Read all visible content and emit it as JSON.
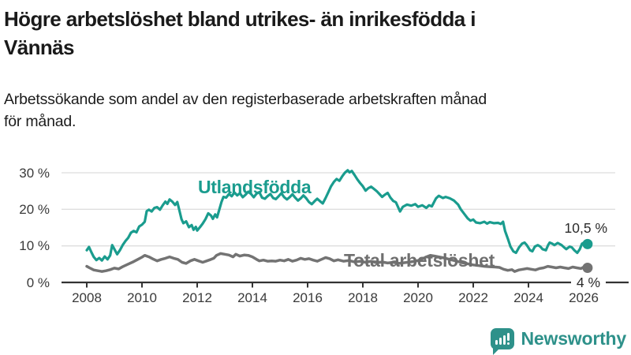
{
  "title": {
    "line1": "Högre arbetslöshet bland utrikes- än inrikesfödda i",
    "line2": "Vännäs"
  },
  "subtitle": {
    "line1": "Arbetssökande som andel av den registerbaserade arbetskraften månad",
    "line2": "för månad."
  },
  "branding": {
    "logo_text": "Newsworthy",
    "logo_icon": "newsworthy-bar-chart-speech-bubble-icon"
  },
  "colors": {
    "accent_teal": "#1a9c8e",
    "logo_teal": "#2e918a",
    "line_gray": "#737373",
    "label_gray": "#6f6f6f",
    "grid": "#dedede",
    "axis": "#333333",
    "text": "#1a1a1a"
  },
  "chart_data": {
    "type": "line",
    "title": "Högre arbetslöshet bland utrikes- än inrikesfödda i Vännäs",
    "xlabel": "",
    "ylabel": "",
    "x_axis": {
      "ticks": [
        2008,
        2010,
        2012,
        2014,
        2016,
        2018,
        2020,
        2022,
        2024,
        2026
      ],
      "min": 2008,
      "max": 2026.2
    },
    "y_axis": {
      "tick_values": [
        0,
        10,
        20,
        30
      ],
      "tick_labels": [
        "0 %",
        "10 %",
        "20 %",
        "30 %"
      ],
      "ylim": [
        0,
        32
      ],
      "grid": true
    },
    "series": [
      {
        "name": "Utlandsfödda",
        "color": "#1a9c8e",
        "end_label": "10,5 %",
        "end_value": 10.5,
        "points": [
          [
            2008.0,
            8.8
          ],
          [
            2008.08,
            9.7
          ],
          [
            2008.17,
            8.2
          ],
          [
            2008.25,
            7.0
          ],
          [
            2008.35,
            6.1
          ],
          [
            2008.45,
            6.7
          ],
          [
            2008.55,
            6.0
          ],
          [
            2008.65,
            7.1
          ],
          [
            2008.75,
            6.3
          ],
          [
            2008.85,
            7.4
          ],
          [
            2008.92,
            10.2
          ],
          [
            2009.0,
            9.1
          ],
          [
            2009.1,
            7.7
          ],
          [
            2009.2,
            8.8
          ],
          [
            2009.3,
            10.2
          ],
          [
            2009.4,
            11.3
          ],
          [
            2009.5,
            12.2
          ],
          [
            2009.6,
            13.6
          ],
          [
            2009.7,
            14.1
          ],
          [
            2009.8,
            13.7
          ],
          [
            2009.9,
            15.3
          ],
          [
            2010.0,
            15.8
          ],
          [
            2010.1,
            16.6
          ],
          [
            2010.17,
            19.5
          ],
          [
            2010.25,
            19.9
          ],
          [
            2010.35,
            19.4
          ],
          [
            2010.45,
            20.4
          ],
          [
            2010.55,
            20.6
          ],
          [
            2010.65,
            19.9
          ],
          [
            2010.75,
            21.1
          ],
          [
            2010.85,
            22.1
          ],
          [
            2010.92,
            21.5
          ],
          [
            2011.0,
            22.7
          ],
          [
            2011.1,
            22.1
          ],
          [
            2011.2,
            21.2
          ],
          [
            2011.28,
            22.0
          ],
          [
            2011.35,
            19.9
          ],
          [
            2011.43,
            17.3
          ],
          [
            2011.5,
            16.2
          ],
          [
            2011.6,
            16.7
          ],
          [
            2011.7,
            15.1
          ],
          [
            2011.8,
            15.7
          ],
          [
            2011.87,
            14.4
          ],
          [
            2011.95,
            15.2
          ],
          [
            2012.0,
            14.2
          ],
          [
            2012.1,
            15.1
          ],
          [
            2012.2,
            16.1
          ],
          [
            2012.3,
            17.3
          ],
          [
            2012.4,
            18.9
          ],
          [
            2012.5,
            18.3
          ],
          [
            2012.57,
            17.4
          ],
          [
            2012.65,
            18.6
          ],
          [
            2012.72,
            17.8
          ],
          [
            2012.8,
            19.9
          ],
          [
            2012.88,
            22.0
          ],
          [
            2012.95,
            23.4
          ],
          [
            2013.05,
            23.2
          ],
          [
            2013.15,
            24.2
          ],
          [
            2013.25,
            23.6
          ],
          [
            2013.35,
            24.6
          ],
          [
            2013.45,
            23.8
          ],
          [
            2013.55,
            24.4
          ],
          [
            2013.65,
            23.3
          ],
          [
            2013.75,
            24.0
          ],
          [
            2013.85,
            24.8
          ],
          [
            2013.95,
            24.2
          ],
          [
            2014.05,
            23.3
          ],
          [
            2014.15,
            24.3
          ],
          [
            2014.25,
            24.7
          ],
          [
            2014.35,
            23.2
          ],
          [
            2014.45,
            22.9
          ],
          [
            2014.55,
            23.6
          ],
          [
            2014.65,
            24.2
          ],
          [
            2014.75,
            23.1
          ],
          [
            2014.85,
            22.8
          ],
          [
            2014.95,
            23.6
          ],
          [
            2015.05,
            24.4
          ],
          [
            2015.15,
            23.3
          ],
          [
            2015.25,
            22.7
          ],
          [
            2015.35,
            23.3
          ],
          [
            2015.45,
            24.1
          ],
          [
            2015.55,
            23.2
          ],
          [
            2015.65,
            22.4
          ],
          [
            2015.75,
            23.0
          ],
          [
            2015.85,
            23.8
          ],
          [
            2015.95,
            23.0
          ],
          [
            2016.05,
            22.0
          ],
          [
            2016.15,
            21.4
          ],
          [
            2016.25,
            22.2
          ],
          [
            2016.35,
            22.9
          ],
          [
            2016.45,
            22.2
          ],
          [
            2016.55,
            21.6
          ],
          [
            2016.65,
            23.1
          ],
          [
            2016.75,
            24.7
          ],
          [
            2016.85,
            26.3
          ],
          [
            2016.95,
            27.5
          ],
          [
            2017.05,
            28.3
          ],
          [
            2017.15,
            27.8
          ],
          [
            2017.25,
            29.0
          ],
          [
            2017.35,
            30.0
          ],
          [
            2017.45,
            30.7
          ],
          [
            2017.52,
            30.1
          ],
          [
            2017.6,
            30.5
          ],
          [
            2017.7,
            29.4
          ],
          [
            2017.8,
            28.2
          ],
          [
            2017.9,
            27.2
          ],
          [
            2018.0,
            26.3
          ],
          [
            2018.1,
            25.1
          ],
          [
            2018.2,
            25.8
          ],
          [
            2018.3,
            26.2
          ],
          [
            2018.4,
            25.6
          ],
          [
            2018.5,
            25.0
          ],
          [
            2018.6,
            24.2
          ],
          [
            2018.7,
            23.4
          ],
          [
            2018.8,
            24.0
          ],
          [
            2018.9,
            24.5
          ],
          [
            2019.0,
            23.2
          ],
          [
            2019.1,
            22.3
          ],
          [
            2019.2,
            21.9
          ],
          [
            2019.35,
            19.4
          ],
          [
            2019.45,
            20.7
          ],
          [
            2019.6,
            21.3
          ],
          [
            2019.75,
            21.0
          ],
          [
            2019.9,
            21.4
          ],
          [
            2020.0,
            20.7
          ],
          [
            2020.15,
            21.1
          ],
          [
            2020.3,
            20.4
          ],
          [
            2020.4,
            21.1
          ],
          [
            2020.5,
            20.8
          ],
          [
            2020.65,
            23.0
          ],
          [
            2020.75,
            23.7
          ],
          [
            2020.9,
            23.1
          ],
          [
            2021.0,
            23.4
          ],
          [
            2021.15,
            23.0
          ],
          [
            2021.3,
            22.4
          ],
          [
            2021.45,
            21.3
          ],
          [
            2021.55,
            20.0
          ],
          [
            2021.7,
            18.5
          ],
          [
            2021.8,
            17.5
          ],
          [
            2021.9,
            16.9
          ],
          [
            2022.0,
            17.2
          ],
          [
            2022.1,
            16.4
          ],
          [
            2022.25,
            16.2
          ],
          [
            2022.4,
            16.6
          ],
          [
            2022.5,
            16.1
          ],
          [
            2022.6,
            16.5
          ],
          [
            2022.75,
            16.2
          ],
          [
            2022.9,
            16.3
          ],
          [
            2023.0,
            16.0
          ],
          [
            2023.08,
            16.6
          ],
          [
            2023.15,
            14.1
          ],
          [
            2023.25,
            12.0
          ],
          [
            2023.35,
            9.8
          ],
          [
            2023.45,
            8.5
          ],
          [
            2023.55,
            8.1
          ],
          [
            2023.66,
            9.6
          ],
          [
            2023.77,
            10.6
          ],
          [
            2023.86,
            10.9
          ],
          [
            2023.94,
            10.2
          ],
          [
            2024.06,
            8.8
          ],
          [
            2024.14,
            8.5
          ],
          [
            2024.23,
            9.8
          ],
          [
            2024.34,
            10.2
          ],
          [
            2024.43,
            9.8
          ],
          [
            2024.51,
            9.1
          ],
          [
            2024.63,
            8.8
          ],
          [
            2024.71,
            10.2
          ],
          [
            2024.77,
            10.9
          ],
          [
            2024.86,
            10.6
          ],
          [
            2024.94,
            10.2
          ],
          [
            2025.06,
            10.8
          ],
          [
            2025.2,
            10.2
          ],
          [
            2025.29,
            9.6
          ],
          [
            2025.37,
            9.1
          ],
          [
            2025.49,
            9.8
          ],
          [
            2025.57,
            9.6
          ],
          [
            2025.66,
            8.8
          ],
          [
            2025.77,
            8.1
          ],
          [
            2025.86,
            9.1
          ],
          [
            2025.94,
            10.6
          ],
          [
            2026.06,
            11.1
          ],
          [
            2026.14,
            10.5
          ]
        ]
      },
      {
        "name": "Total arbetslöshet",
        "color": "#737373",
        "end_label": "4 %",
        "end_value": 4.0,
        "points": [
          [
            2008.0,
            4.4
          ],
          [
            2008.1,
            4.0
          ],
          [
            2008.25,
            3.4
          ],
          [
            2008.4,
            3.2
          ],
          [
            2008.55,
            3.0
          ],
          [
            2008.7,
            3.2
          ],
          [
            2008.85,
            3.5
          ],
          [
            2009.0,
            3.9
          ],
          [
            2009.15,
            3.7
          ],
          [
            2009.3,
            4.3
          ],
          [
            2009.5,
            5.0
          ],
          [
            2009.7,
            5.7
          ],
          [
            2009.85,
            6.3
          ],
          [
            2010.0,
            6.9
          ],
          [
            2010.1,
            7.4
          ],
          [
            2010.25,
            7.0
          ],
          [
            2010.4,
            6.4
          ],
          [
            2010.55,
            5.9
          ],
          [
            2010.7,
            6.3
          ],
          [
            2010.85,
            6.6
          ],
          [
            2011.0,
            7.0
          ],
          [
            2011.15,
            6.6
          ],
          [
            2011.3,
            6.3
          ],
          [
            2011.45,
            5.5
          ],
          [
            2011.6,
            5.2
          ],
          [
            2011.75,
            5.9
          ],
          [
            2011.9,
            6.3
          ],
          [
            2012.05,
            5.9
          ],
          [
            2012.2,
            5.5
          ],
          [
            2012.35,
            5.9
          ],
          [
            2012.5,
            6.3
          ],
          [
            2012.6,
            6.6
          ],
          [
            2012.7,
            7.4
          ],
          [
            2012.85,
            7.9
          ],
          [
            2013.0,
            7.7
          ],
          [
            2013.15,
            7.5
          ],
          [
            2013.3,
            7.0
          ],
          [
            2013.4,
            7.7
          ],
          [
            2013.55,
            7.2
          ],
          [
            2013.7,
            7.5
          ],
          [
            2013.85,
            7.4
          ],
          [
            2014.0,
            7.0
          ],
          [
            2014.15,
            6.3
          ],
          [
            2014.25,
            5.9
          ],
          [
            2014.4,
            6.1
          ],
          [
            2014.55,
            5.8
          ],
          [
            2014.7,
            5.9
          ],
          [
            2014.85,
            5.8
          ],
          [
            2015.0,
            6.1
          ],
          [
            2015.15,
            5.9
          ],
          [
            2015.3,
            6.3
          ],
          [
            2015.45,
            5.8
          ],
          [
            2015.6,
            6.1
          ],
          [
            2015.75,
            6.6
          ],
          [
            2015.9,
            6.3
          ],
          [
            2016.05,
            6.5
          ],
          [
            2016.2,
            6.1
          ],
          [
            2016.35,
            5.8
          ],
          [
            2016.5,
            6.3
          ],
          [
            2016.65,
            6.8
          ],
          [
            2016.8,
            6.5
          ],
          [
            2016.95,
            5.9
          ],
          [
            2017.1,
            6.2
          ],
          [
            2017.3,
            5.8
          ],
          [
            2017.5,
            6.0
          ],
          [
            2017.7,
            5.6
          ],
          [
            2017.9,
            5.8
          ],
          [
            2018.1,
            5.5
          ],
          [
            2018.3,
            5.8
          ],
          [
            2018.5,
            5.4
          ],
          [
            2018.7,
            5.6
          ],
          [
            2018.9,
            5.3
          ],
          [
            2019.1,
            5.5
          ],
          [
            2019.3,
            5.2
          ],
          [
            2019.5,
            5.4
          ],
          [
            2019.7,
            5.6
          ],
          [
            2019.9,
            5.8
          ],
          [
            2020.1,
            6.2
          ],
          [
            2020.3,
            7.0
          ],
          [
            2020.45,
            7.4
          ],
          [
            2020.6,
            7.2
          ],
          [
            2020.8,
            6.9
          ],
          [
            2021.0,
            6.6
          ],
          [
            2021.2,
            6.2
          ],
          [
            2021.4,
            5.8
          ],
          [
            2021.6,
            5.4
          ],
          [
            2021.8,
            5.1
          ],
          [
            2022.0,
            4.8
          ],
          [
            2022.2,
            4.6
          ],
          [
            2022.4,
            4.4
          ],
          [
            2022.6,
            4.3
          ],
          [
            2022.8,
            4.2
          ],
          [
            2022.95,
            4.1
          ],
          [
            2023.1,
            3.6
          ],
          [
            2023.25,
            3.3
          ],
          [
            2023.4,
            3.5
          ],
          [
            2023.5,
            3.0
          ],
          [
            2023.65,
            3.4
          ],
          [
            2023.8,
            3.6
          ],
          [
            2023.95,
            3.8
          ],
          [
            2024.1,
            3.6
          ],
          [
            2024.25,
            3.4
          ],
          [
            2024.4,
            3.8
          ],
          [
            2024.55,
            4.0
          ],
          [
            2024.7,
            4.4
          ],
          [
            2024.85,
            4.2
          ],
          [
            2025.0,
            4.0
          ],
          [
            2025.15,
            4.2
          ],
          [
            2025.3,
            4.0
          ],
          [
            2025.45,
            3.8
          ],
          [
            2025.6,
            4.2
          ],
          [
            2025.75,
            4.0
          ],
          [
            2025.9,
            3.8
          ],
          [
            2026.0,
            4.2
          ],
          [
            2026.14,
            4.0
          ]
        ]
      }
    ]
  }
}
